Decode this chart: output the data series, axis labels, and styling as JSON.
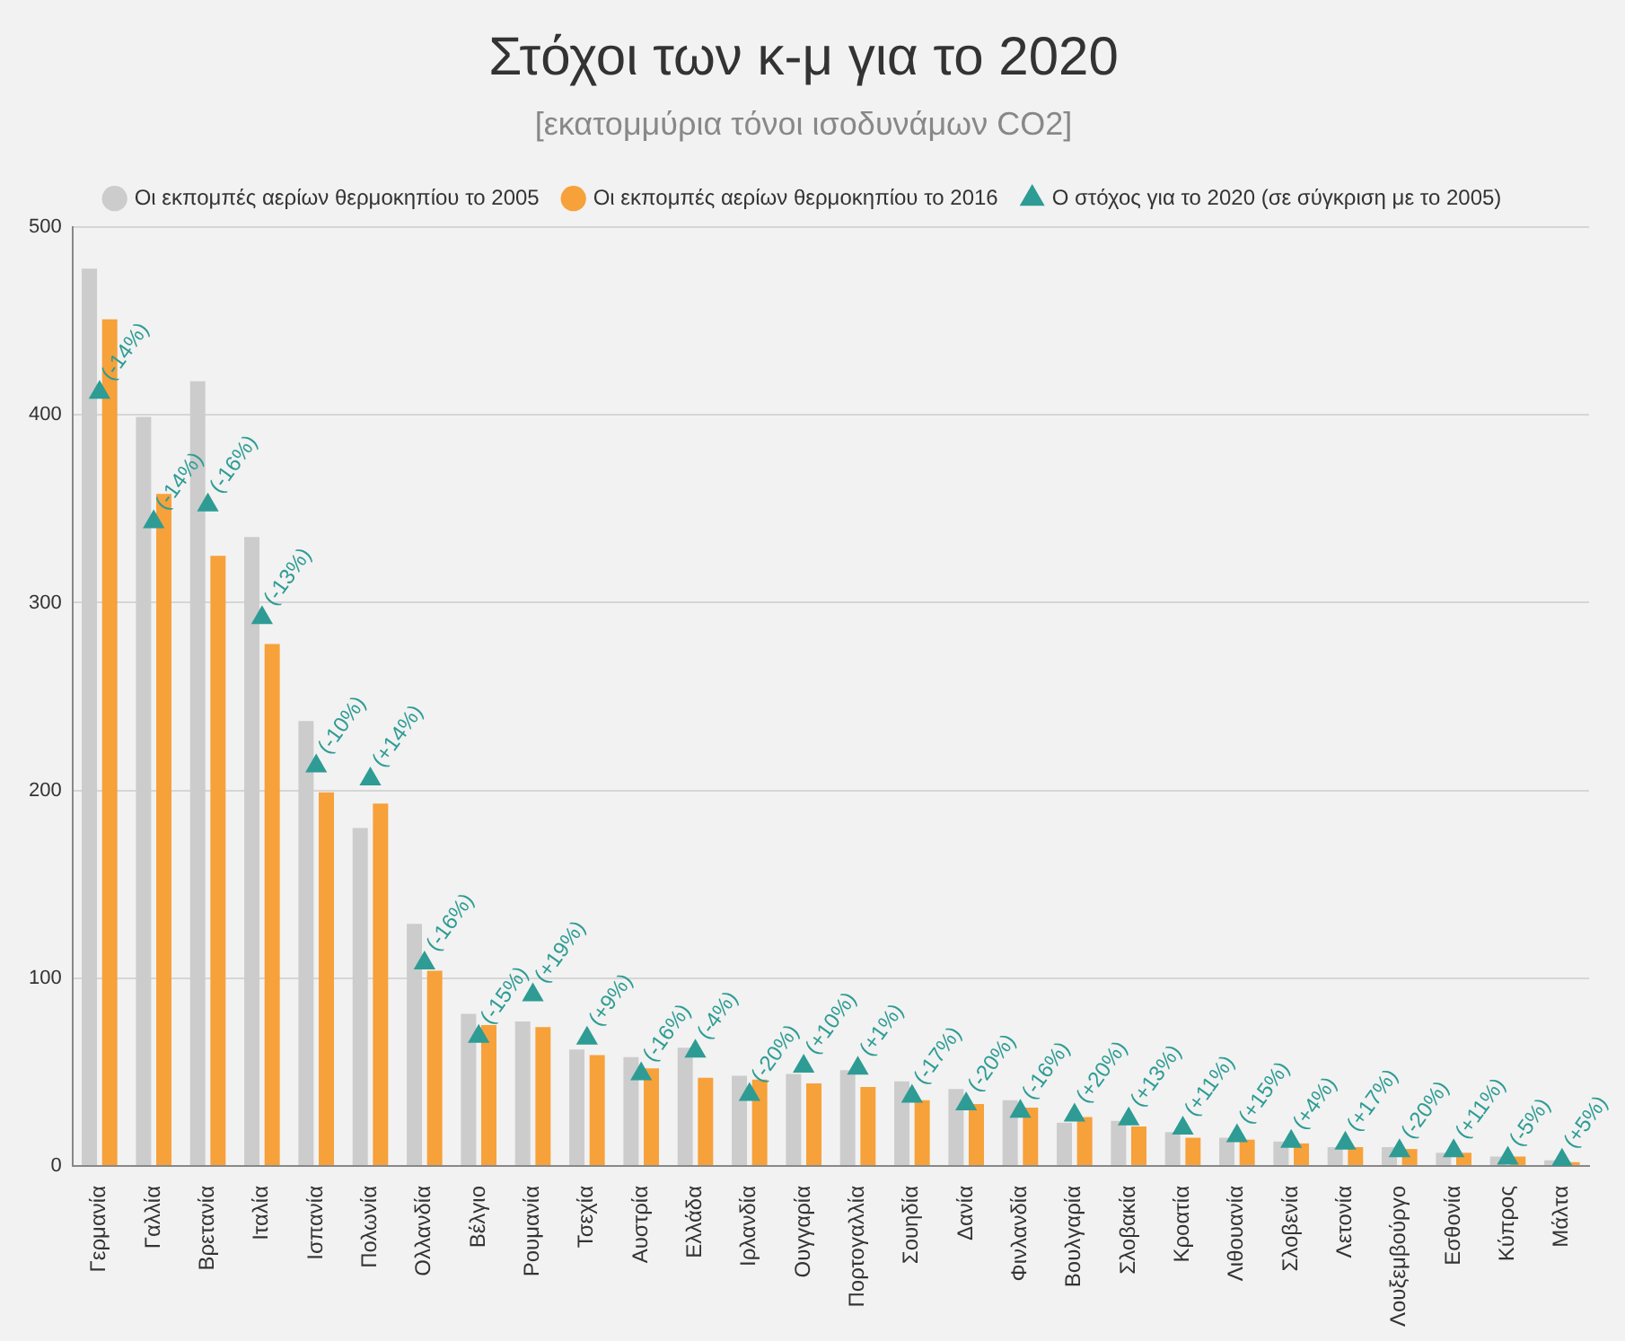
{
  "chart_data": {
    "type": "bar",
    "title": "Στόχοι των κ-μ για το 2020",
    "subtitle": "[εκατομμύρια τόνοι ισοδυνάμων CO2]",
    "categories": [
      "Γερμανία",
      "Γαλλία",
      "Βρετανία",
      "Ιταλία",
      "Ισπανία",
      "Πολωνία",
      "Ολλανδία",
      "Βέλγιο",
      "Ρουμανία",
      "Τσεχία",
      "Αυστρία",
      "Ελλάδα",
      "Ιρλανδία",
      "Ουγγαρία",
      "Πορτογαλλία",
      "Σουηδία",
      "Δανία",
      "Φινλανδία",
      "Βουλγαρία",
      "Σλοβακία",
      "Κροατία",
      "Λιθουανία",
      "Σλοβενία",
      "Λετονία",
      "Λουξεμβούργο",
      "Εσθονία",
      "Κύπρος",
      "Μάλτα"
    ],
    "series": [
      {
        "name": "Οι εκπομπές αερίων θερμοκηπίου το 2005",
        "color": "#cccccc",
        "values": [
          478,
          399,
          418,
          335,
          237,
          180,
          129,
          81,
          77,
          62,
          58,
          63,
          48,
          49,
          51,
          45,
          41,
          35,
          23,
          24,
          18,
          15,
          13,
          10,
          10,
          7,
          5,
          3
        ]
      },
      {
        "name": "Οι εκπομπές αερίων θερμοκηπίου το 2016",
        "color": "#f7a13a",
        "values": [
          451,
          358,
          325,
          278,
          199,
          193,
          104,
          75,
          74,
          59,
          52,
          47,
          46,
          44,
          42,
          35,
          33,
          31,
          26,
          21,
          15,
          14,
          12,
          10,
          9,
          7,
          5,
          2
        ]
      },
      {
        "name": "Ο στόχος για το 2020 (σε σύγκριση με το 2005)",
        "type": "scatter",
        "marker": "triangle",
        "color": "#2e9c94",
        "x": [
          "Γερμανία",
          "Γαλλία",
          "Βρετανία",
          "Ιταλία",
          "Ισπανία",
          "Πολωνία",
          "Ολλανδία",
          "Βέλγιο",
          "Ρουμανία",
          "Τσεχία",
          "Αυστρία",
          "Ελλάδα",
          "Ιρλανδία",
          "Ουγγαρία",
          "Πορτογαλλία",
          "Σουηδία",
          "Δανία",
          "Φινλανδία",
          "Βουλγαρία",
          "Σλοβακία",
          "Κροατία",
          "Λιθουανία",
          "Σλοβενία",
          "Λετονία",
          "Λουξεμβούργο",
          "Εσθονία",
          "Κύπρος",
          "Μάλτα"
        ],
        "values": [
          412,
          343,
          352,
          292,
          213,
          206,
          108,
          69,
          91,
          68,
          49,
          61,
          38,
          53,
          52,
          37,
          33,
          29,
          27,
          25,
          20,
          16,
          13,
          12,
          8,
          8,
          4,
          3
        ]
      }
    ],
    "annotations": [
      {
        "text": "(-14%)",
        "x": "Γερμανία",
        "y": 412
      },
      {
        "text": "(-14%)",
        "x": "Γαλλία",
        "y": 343
      },
      {
        "text": "(-16%)",
        "x": "Βρετανία",
        "y": 352
      },
      {
        "text": "(-13%)",
        "x": "Ιταλία",
        "y": 292
      },
      {
        "text": "(-10%)",
        "x": "Ισπανία",
        "y": 213
      },
      {
        "text": "(+14%)",
        "x": "Πολωνία",
        "y": 206
      },
      {
        "text": "(-16%)",
        "x": "Ολλανδία",
        "y": 108
      },
      {
        "text": "(-15%)",
        "x": "Βέλγιο",
        "y": 69
      },
      {
        "text": "(+19%)",
        "x": "Ρουμανία",
        "y": 91
      },
      {
        "text": "(+9%)",
        "x": "Τσεχία",
        "y": 68
      },
      {
        "text": "(-16%)",
        "x": "Αυστρία",
        "y": 49
      },
      {
        "text": "(-4%)",
        "x": "Ελλάδα",
        "y": 61
      },
      {
        "text": "(-20%)",
        "x": "Ιρλανδία",
        "y": 38
      },
      {
        "text": "(+10%)",
        "x": "Ουγγαρία",
        "y": 53
      },
      {
        "text": "(+1%)",
        "x": "Πορτογαλλία",
        "y": 52
      },
      {
        "text": "(-17%)",
        "x": "Σουηδία",
        "y": 37
      },
      {
        "text": "(-20%)",
        "x": "Δανία",
        "y": 33
      },
      {
        "text": "(-16%)",
        "x": "Φινλανδία",
        "y": 29
      },
      {
        "text": "(+20%)",
        "x": "Βουλγαρία",
        "y": 27
      },
      {
        "text": "(+13%)",
        "x": "Σλοβακία",
        "y": 25
      },
      {
        "text": "(+11%)",
        "x": "Κροατία",
        "y": 20
      },
      {
        "text": "(+15%)",
        "x": "Λιθουανία",
        "y": 16
      },
      {
        "text": "(+4%)",
        "x": "Σλοβενία",
        "y": 13
      },
      {
        "text": "(+17%)",
        "x": "Λετονία",
        "y": 12
      },
      {
        "text": "(-20%)",
        "x": "Λουξεμβούργο",
        "y": 8
      },
      {
        "text": "(+11%)",
        "x": "Εσθονία",
        "y": 8
      },
      {
        "text": "(-5%)",
        "x": "Κύπρος",
        "y": 4
      },
      {
        "text": "(+5%)",
        "x": "Μάλτα",
        "y": 3
      }
    ],
    "ylim": [
      0,
      500
    ],
    "yticks": [
      0,
      100,
      200,
      300,
      400,
      500
    ],
    "grid": "y",
    "legend": "top"
  }
}
